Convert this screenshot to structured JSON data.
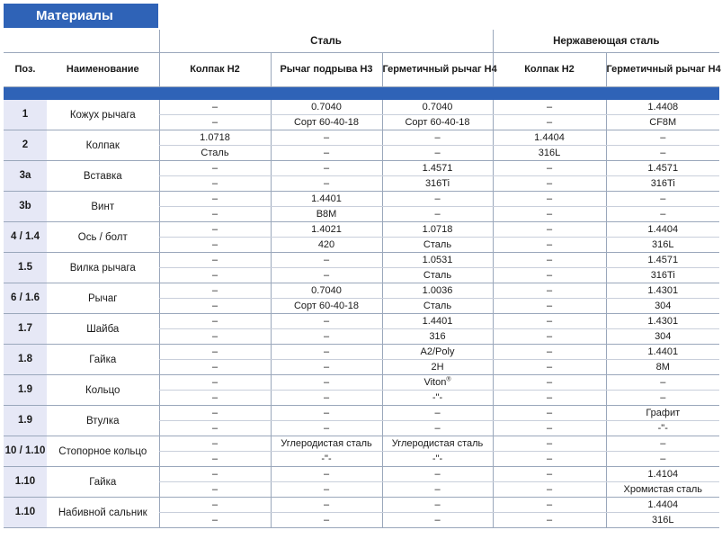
{
  "title": "Материалы",
  "groups": {
    "steel": "Сталь",
    "stainless": "Нержавеющая сталь"
  },
  "columns": {
    "pos": "Поз.",
    "name": "Наименование",
    "steel_cap": "Колпак H2",
    "steel_lever": "Рычаг подрыва H3",
    "steel_sealed": "Герметичный рычаг H4",
    "ss_cap": "Колпак H2",
    "ss_sealed": "Герметичный рычаг H4"
  },
  "rows": [
    {
      "pos": "1",
      "name": "Кожух рычага",
      "cells": [
        [
          "–",
          "–"
        ],
        [
          "0.7040",
          "Сорт 60-40-18"
        ],
        [
          "0.7040",
          "Сорт 60-40-18"
        ],
        [
          "–",
          "–"
        ],
        [
          "1.4408",
          "CF8M"
        ]
      ]
    },
    {
      "pos": "2",
      "name": "Колпак",
      "cells": [
        [
          "1.0718",
          "Сталь"
        ],
        [
          "–",
          "–"
        ],
        [
          "–",
          "–"
        ],
        [
          "1.4404",
          "316L"
        ],
        [
          "–",
          "–"
        ]
      ]
    },
    {
      "pos": "3a",
      "name": "Вставка",
      "cells": [
        [
          "–",
          "–"
        ],
        [
          "–",
          "–"
        ],
        [
          "1.4571",
          "316Ti"
        ],
        [
          "–",
          "–"
        ],
        [
          "1.4571",
          "316Ti"
        ]
      ]
    },
    {
      "pos": "3b",
      "name": "Винт",
      "cells": [
        [
          "–",
          "–"
        ],
        [
          "1.4401",
          "B8M"
        ],
        [
          "–",
          "–"
        ],
        [
          "–",
          "–"
        ],
        [
          "–",
          "–"
        ]
      ]
    },
    {
      "pos": "4 / 1.4",
      "name": "Ось / болт",
      "cells": [
        [
          "–",
          "–"
        ],
        [
          "1.4021",
          "420"
        ],
        [
          "1.0718",
          "Сталь"
        ],
        [
          "–",
          "–"
        ],
        [
          "1.4404",
          "316L"
        ]
      ]
    },
    {
      "pos": "1.5",
      "name": "Вилка рычага",
      "cells": [
        [
          "–",
          "–"
        ],
        [
          "–",
          "–"
        ],
        [
          "1.0531",
          "Сталь"
        ],
        [
          "–",
          "–"
        ],
        [
          "1.4571",
          "316Ti"
        ]
      ]
    },
    {
      "pos": "6 / 1.6",
      "name": "Рычаг",
      "cells": [
        [
          "–",
          "–"
        ],
        [
          "0.7040",
          "Сорт 60-40-18"
        ],
        [
          "1.0036",
          "Сталь"
        ],
        [
          "–",
          "–"
        ],
        [
          "1.4301",
          "304"
        ]
      ]
    },
    {
      "pos": "1.7",
      "name": "Шайба",
      "cells": [
        [
          "–",
          "–"
        ],
        [
          "–",
          "–"
        ],
        [
          "1.4401",
          "316"
        ],
        [
          "–",
          "–"
        ],
        [
          "1.4301",
          "304"
        ]
      ]
    },
    {
      "pos": "1.8",
      "name": "Гайка",
      "cells": [
        [
          "–",
          "–"
        ],
        [
          "–",
          "–"
        ],
        [
          "A2/Poly",
          "2H"
        ],
        [
          "–",
          "–"
        ],
        [
          "1.4401",
          "8M"
        ]
      ]
    },
    {
      "pos": "1.9",
      "name": "Кольцо",
      "cells": [
        [
          "–",
          "–"
        ],
        [
          "–",
          "–"
        ],
        [
          "Viton®",
          "-\"-"
        ],
        [
          "–",
          "–"
        ],
        [
          "–",
          "–"
        ]
      ]
    },
    {
      "pos": "1.9",
      "name": "Втулка",
      "cells": [
        [
          "–",
          "–"
        ],
        [
          "–",
          "–"
        ],
        [
          "–",
          "–"
        ],
        [
          "–",
          "–"
        ],
        [
          "Графит",
          "-\"-"
        ]
      ]
    },
    {
      "pos": "10 / 1.10",
      "name": "Стопорное кольцо",
      "cells": [
        [
          "–",
          "–"
        ],
        [
          "Углеродистая сталь",
          "-\"-"
        ],
        [
          "Углеродистая сталь",
          "-\"-"
        ],
        [
          "–",
          "–"
        ],
        [
          "–",
          "–"
        ]
      ]
    },
    {
      "pos": "1.10",
      "name": "Гайка",
      "cells": [
        [
          "–",
          "–"
        ],
        [
          "–",
          "–"
        ],
        [
          "–",
          "–"
        ],
        [
          "–",
          "–"
        ],
        [
          "1.4104",
          "Хромистая сталь"
        ]
      ]
    },
    {
      "pos": "1.10",
      "name": "Набивной сальник",
      "cells": [
        [
          "–",
          "–"
        ],
        [
          "–",
          "–"
        ],
        [
          "–",
          "–"
        ],
        [
          "–",
          "–"
        ],
        [
          "1.4404",
          "316L"
        ]
      ]
    }
  ]
}
